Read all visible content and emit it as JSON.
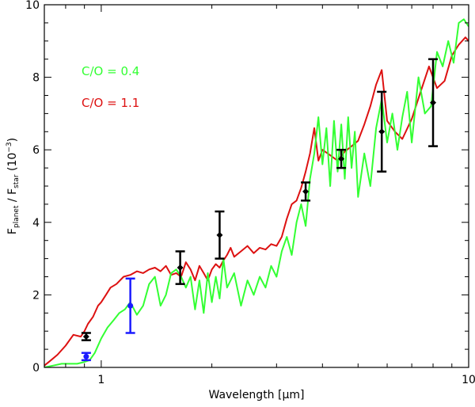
{
  "chart_data": {
    "type": "line",
    "title": "",
    "xlabel_prefix": "Wavelength [",
    "xlabel_unit": "µm",
    "xlabel_suffix": "]",
    "ylabel_f1": "F",
    "ylabel_sub1": "planet",
    "ylabel_mid": " / F",
    "ylabel_sub2": "star",
    "ylabel_unit_open": " (10",
    "ylabel_exp": "−3",
    "ylabel_unit_close": ")",
    "x_scale": "log",
    "xlim": [
      0.7,
      10.0
    ],
    "ylim": [
      0,
      10
    ],
    "x_ticks": [
      1,
      10
    ],
    "x_tick_labels": [
      "1",
      "10"
    ],
    "y_ticks": [
      0,
      2,
      4,
      6,
      8,
      10
    ],
    "y_tick_labels": [
      "0",
      "2",
      "4",
      "6",
      "8",
      "10"
    ],
    "grid": false,
    "legend": [
      {
        "label": "C/O = 0.4",
        "color": "#33ff33"
      },
      {
        "label": "C/O = 1.1",
        "color": "#dd1111"
      }
    ],
    "series": [
      {
        "name": "C/O = 1.1",
        "color": "#dd1111",
        "x": [
          0.7,
          0.73,
          0.76,
          0.8,
          0.84,
          0.88,
          0.9,
          0.92,
          0.95,
          0.98,
          1.0,
          1.03,
          1.06,
          1.1,
          1.15,
          1.2,
          1.25,
          1.3,
          1.35,
          1.4,
          1.45,
          1.5,
          1.55,
          1.6,
          1.65,
          1.7,
          1.75,
          1.8,
          1.85,
          1.9,
          1.95,
          2.0,
          2.05,
          2.1,
          2.15,
          2.2,
          2.25,
          2.3,
          2.4,
          2.5,
          2.6,
          2.7,
          2.8,
          2.9,
          3.0,
          3.1,
          3.2,
          3.3,
          3.4,
          3.5,
          3.6,
          3.7,
          3.8,
          3.9,
          4.0,
          4.2,
          4.4,
          4.6,
          4.8,
          5.0,
          5.2,
          5.4,
          5.6,
          5.8,
          6.0,
          6.3,
          6.6,
          7.0,
          7.4,
          7.8,
          8.2,
          8.6,
          9.0,
          9.4,
          9.8,
          10.0
        ],
        "y": [
          0.05,
          0.2,
          0.35,
          0.6,
          0.9,
          0.85,
          1.0,
          1.2,
          1.4,
          1.7,
          1.8,
          2.0,
          2.2,
          2.3,
          2.5,
          2.55,
          2.65,
          2.6,
          2.7,
          2.75,
          2.65,
          2.8,
          2.55,
          2.6,
          2.5,
          2.9,
          2.7,
          2.4,
          2.8,
          2.6,
          2.4,
          2.7,
          2.85,
          2.75,
          2.95,
          3.1,
          3.3,
          3.05,
          3.2,
          3.35,
          3.15,
          3.3,
          3.25,
          3.4,
          3.35,
          3.6,
          4.1,
          4.5,
          4.6,
          4.95,
          5.4,
          5.9,
          6.6,
          5.7,
          6.0,
          5.85,
          5.7,
          5.95,
          6.1,
          6.25,
          6.7,
          7.2,
          7.8,
          8.2,
          6.8,
          6.5,
          6.3,
          6.85,
          7.6,
          8.3,
          7.7,
          7.9,
          8.6,
          8.9,
          9.1,
          9.0
        ]
      },
      {
        "name": "C/O = 0.4",
        "color": "#33ff33",
        "x": [
          0.7,
          0.74,
          0.78,
          0.82,
          0.86,
          0.9,
          0.93,
          0.96,
          1.0,
          1.04,
          1.08,
          1.12,
          1.16,
          1.2,
          1.25,
          1.3,
          1.35,
          1.4,
          1.45,
          1.5,
          1.55,
          1.6,
          1.65,
          1.7,
          1.75,
          1.8,
          1.85,
          1.9,
          1.95,
          2.0,
          2.05,
          2.1,
          2.15,
          2.2,
          2.3,
          2.4,
          2.5,
          2.6,
          2.7,
          2.8,
          2.9,
          3.0,
          3.1,
          3.2,
          3.3,
          3.4,
          3.5,
          3.6,
          3.7,
          3.8,
          3.9,
          4.0,
          4.1,
          4.2,
          4.3,
          4.4,
          4.5,
          4.6,
          4.7,
          4.8,
          4.9,
          5.0,
          5.2,
          5.4,
          5.6,
          5.8,
          6.0,
          6.2,
          6.4,
          6.6,
          6.8,
          7.0,
          7.3,
          7.6,
          7.9,
          8.2,
          8.5,
          8.8,
          9.1,
          9.4,
          9.7,
          10.0
        ],
        "y": [
          0.0,
          0.05,
          0.1,
          0.1,
          0.1,
          0.15,
          0.2,
          0.4,
          0.8,
          1.1,
          1.3,
          1.5,
          1.6,
          1.8,
          1.45,
          1.7,
          2.3,
          2.5,
          1.7,
          2.0,
          2.6,
          2.7,
          2.5,
          2.2,
          2.5,
          1.6,
          2.4,
          1.5,
          2.6,
          1.8,
          2.5,
          1.9,
          3.0,
          2.2,
          2.6,
          1.7,
          2.4,
          2.0,
          2.5,
          2.2,
          2.8,
          2.5,
          3.2,
          3.6,
          3.1,
          4.0,
          4.5,
          3.9,
          5.2,
          5.9,
          6.9,
          5.6,
          6.6,
          5.0,
          6.8,
          5.4,
          6.7,
          5.2,
          6.9,
          5.5,
          6.5,
          4.7,
          5.9,
          5.0,
          6.6,
          7.4,
          6.2,
          7.0,
          6.0,
          6.9,
          7.6,
          6.2,
          8.0,
          7.0,
          7.2,
          8.7,
          8.3,
          9.0,
          8.4,
          9.5,
          9.6,
          9.4
        ]
      }
    ],
    "error_points": [
      {
        "x": 0.91,
        "y": 0.85,
        "yerr_low": 0.1,
        "yerr_high": 0.1,
        "color": "#000000"
      },
      {
        "x": 1.64,
        "y": 2.75,
        "yerr_low": 0.45,
        "yerr_high": 0.45,
        "color": "#000000"
      },
      {
        "x": 2.1,
        "y": 3.65,
        "yerr_low": 0.65,
        "yerr_high": 0.65,
        "color": "#000000"
      },
      {
        "x": 3.6,
        "y": 4.85,
        "yerr_low": 0.25,
        "yerr_high": 0.25,
        "color": "#000000"
      },
      {
        "x": 4.5,
        "y": 5.75,
        "yerr_low": 0.25,
        "yerr_high": 0.25,
        "color": "#000000"
      },
      {
        "x": 5.8,
        "y": 6.5,
        "yerr_low": 1.1,
        "yerr_high": 1.1,
        "color": "#000000"
      },
      {
        "x": 8.0,
        "y": 7.3,
        "yerr_low": 1.2,
        "yerr_high": 1.2,
        "color": "#000000"
      },
      {
        "x": 0.91,
        "y": 0.3,
        "yerr_low": 0.1,
        "yerr_high": 0.1,
        "color": "#1a1aff"
      },
      {
        "x": 1.2,
        "y": 1.7,
        "yerr_low": 0.75,
        "yerr_high": 0.75,
        "color": "#1a1aff"
      }
    ]
  }
}
